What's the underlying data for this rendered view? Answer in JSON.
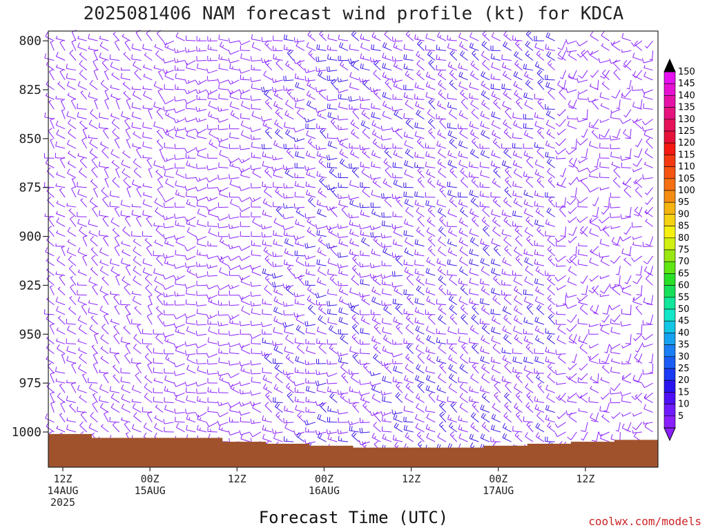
{
  "chart_data": {
    "type": "wind-barb-profile",
    "title": "2025081406 NAM forecast wind profile (kt) for KDCA",
    "xlabel": "Forecast Time (UTC)",
    "ylabel": "",
    "y_ticks": [
      "800",
      "825",
      "850",
      "875",
      "900",
      "925",
      "950",
      "975",
      "1000"
    ],
    "y_range_hpa": [
      795,
      1018
    ],
    "x_range_hours": [
      4,
      88
    ],
    "x_ticks": [
      {
        "hour": 6,
        "lines": [
          "12Z",
          "14AUG",
          "2025"
        ]
      },
      {
        "hour": 18,
        "lines": [
          "00Z",
          "15AUG"
        ]
      },
      {
        "hour": 30,
        "lines": [
          "12Z",
          ""
        ]
      },
      {
        "hour": 42,
        "lines": [
          "00Z",
          "16AUG"
        ]
      },
      {
        "hour": 54,
        "lines": [
          "12Z",
          ""
        ]
      },
      {
        "hour": 66,
        "lines": [
          "00Z",
          "17AUG"
        ]
      },
      {
        "hour": 78,
        "lines": [
          "12Z",
          ""
        ]
      }
    ],
    "legend_position": "right",
    "colorbar": {
      "levels": [
        5,
        10,
        15,
        20,
        25,
        30,
        35,
        40,
        45,
        50,
        55,
        60,
        65,
        70,
        75,
        80,
        85,
        90,
        95,
        100,
        105,
        110,
        115,
        120,
        125,
        130,
        135,
        140,
        145,
        150
      ],
      "colors": [
        "#8a20ff",
        "#6f1aff",
        "#4f10f5",
        "#2a14f0",
        "#1a3af5",
        "#1a5cf5",
        "#1a7ef5",
        "#16a2f0",
        "#12c6e6",
        "#12e6c8",
        "#12e69a",
        "#16e05a",
        "#28e028",
        "#60e612",
        "#98e612",
        "#d0f012",
        "#f5f012",
        "#f5d212",
        "#f5b412",
        "#f58c12",
        "#f57012",
        "#f55412",
        "#f53a12",
        "#f51a12",
        "#e6123a",
        "#e6125a",
        "#e6127e",
        "#e612a8",
        "#e612d2",
        "#e612f0"
      ],
      "max_arrow_color": "#000000",
      "min_arrow_color": "#8a20ff"
    },
    "terrain_color": "#a0522d",
    "terrain_surface_hpa": [
      [
        4,
        1001
      ],
      [
        10,
        1003
      ],
      [
        16,
        1003
      ],
      [
        22,
        1003
      ],
      [
        28,
        1005
      ],
      [
        34,
        1006
      ],
      [
        40,
        1007
      ],
      [
        46,
        1008
      ],
      [
        52,
        1008
      ],
      [
        58,
        1008
      ],
      [
        64,
        1007
      ],
      [
        70,
        1006
      ],
      [
        76,
        1005
      ],
      [
        82,
        1004
      ],
      [
        88,
        1003
      ]
    ],
    "wind_barbs": {
      "time_step_hours": 1.5,
      "levels_hpa": [
        800,
        805,
        810,
        815,
        820,
        825,
        830,
        835,
        840,
        845,
        850,
        855,
        860,
        865,
        870,
        875,
        880,
        885,
        890,
        895,
        900,
        905,
        910,
        915,
        920,
        925,
        930,
        935,
        940,
        945,
        950,
        955,
        960,
        965,
        970,
        975,
        980,
        985,
        990,
        995,
        1000,
        1005,
        1010
      ],
      "speed_kt_by_period": [
        {
          "hours": [
            4,
            20
          ],
          "speed_range_kt": [
            5,
            12
          ],
          "direction_from_deg": [
            270,
            340
          ]
        },
        {
          "hours": [
            20,
            34
          ],
          "speed_range_kt": [
            8,
            14
          ],
          "direction_from_deg": [
            240,
            300
          ]
        },
        {
          "hours": [
            34,
            54
          ],
          "speed_range_kt": [
            10,
            20
          ],
          "direction_from_deg": [
            250,
            320
          ]
        },
        {
          "hours": [
            54,
            74
          ],
          "speed_range_kt": [
            10,
            20
          ],
          "direction_from_deg": [
            270,
            320
          ]
        },
        {
          "hours": [
            74,
            88
          ],
          "speed_range_kt": [
            5,
            12
          ],
          "direction_from_deg": [
            180,
            320
          ]
        }
      ],
      "color": "#8a20ff"
    }
  },
  "credit": "coolwx.com/models"
}
